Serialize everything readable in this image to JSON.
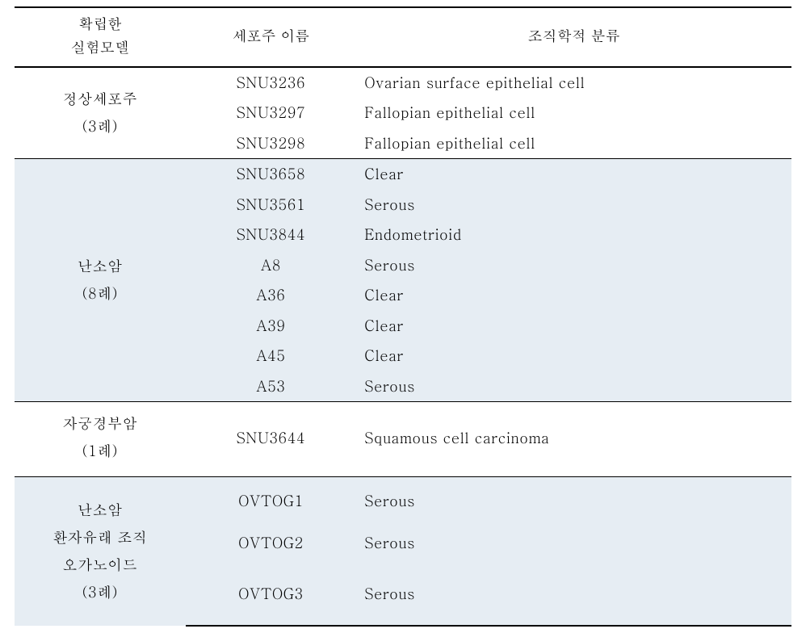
{
  "headers": {
    "col1_line1": "확립한",
    "col1_line2": "실험모델",
    "col2": "세포주 이름",
    "col3": "조직학적 분류"
  },
  "groups": [
    {
      "model_lines": [
        "정상세포주",
        "(3례)"
      ],
      "shaded": false,
      "rows": [
        {
          "name": "SNU3236",
          "classification": "Ovarian surface epithelial cell"
        },
        {
          "name": "SNU3297",
          "classification": "Fallopian epithelial cell"
        },
        {
          "name": "SNU3298",
          "classification": "Fallopian epithelial cell"
        }
      ]
    },
    {
      "model_lines": [
        "난소암",
        "(8례)"
      ],
      "shaded": true,
      "rows": [
        {
          "name": "SNU3658",
          "classification": "Clear"
        },
        {
          "name": "SNU3561",
          "classification": "Serous"
        },
        {
          "name": "SNU3844",
          "classification": "Endometrioid"
        },
        {
          "name": "A8",
          "classification": "Serous"
        },
        {
          "name": "A36",
          "classification": "Clear"
        },
        {
          "name": "A39",
          "classification": "Clear"
        },
        {
          "name": "A45",
          "classification": "Clear"
        },
        {
          "name": "A53",
          "classification": "Serous"
        }
      ]
    },
    {
      "model_lines": [
        "자궁경부암",
        "(1례)"
      ],
      "shaded": false,
      "tall": true,
      "rows": [
        {
          "name": "SNU3644",
          "classification": "Squamous cell carcinoma"
        }
      ]
    },
    {
      "model_lines": [
        "난소암",
        "환자유래 조직",
        "오가노이드",
        "(3례)"
      ],
      "shaded": true,
      "organoid": true,
      "rows": [
        {
          "name": "OVTOG1",
          "classification": "Serous"
        },
        {
          "name": "OVTOG2",
          "classification": "Serous"
        },
        {
          "name": "OVTOG3",
          "classification": "Serous"
        }
      ]
    }
  ],
  "colors": {
    "shaded_bg": "#e6edf3",
    "border": "#000000",
    "text": "#000000",
    "page_bg": "#ffffff"
  }
}
